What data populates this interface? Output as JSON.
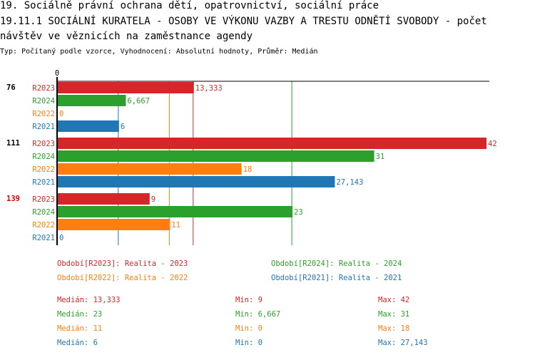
{
  "header": {
    "title": "19. Sociálně právní ochrana dětí, opatrovnictví, sociální práce",
    "subtitle_line1": "19.11.1 SOCIÁLNÍ KURATELA - OSOBY VE VÝKONU VAZBY A TRESTU ODNĚTÍ SVOBODY - počet",
    "subtitle_line2": " návštěv ve věznicích na zaměstnance agendy",
    "info": "Typ: Počítaný podle vzorce, Vyhodnocení: Absolutní hodnoty, Průměr: Medián"
  },
  "chart_data": {
    "type": "bar",
    "orientation": "horizontal",
    "x_tick_labels": [
      "0"
    ],
    "xlim": [
      0,
      42
    ],
    "categories": [
      "76",
      "111",
      "139"
    ],
    "category_colors": [
      "#000000",
      "#000000",
      "#e00000"
    ],
    "series": [
      {
        "name": "R2023",
        "color": "#d62728",
        "values": [
          13.333,
          42,
          9
        ],
        "labels": [
          "13,333",
          "42",
          "9"
        ]
      },
      {
        "name": "R2024",
        "color": "#2ca02c",
        "values": [
          6.667,
          31,
          23
        ],
        "labels": [
          "6,667",
          "31",
          "23"
        ]
      },
      {
        "name": "R2022",
        "color": "#ff7f0e",
        "values": [
          0,
          18,
          11
        ],
        "labels": [
          "0",
          "18",
          "11"
        ]
      },
      {
        "name": "R2021",
        "color": "#1f77b4",
        "values": [
          6,
          27.143,
          0
        ],
        "labels": [
          "6",
          "27,143",
          "0"
        ]
      }
    ],
    "median_lines": [
      {
        "series": "R2021",
        "value": 6,
        "color": "#1f77b4"
      },
      {
        "series": "R2022",
        "value": 11,
        "color": "#ff7f0e"
      },
      {
        "series": "R2023",
        "value": 13.333,
        "color": "#d62728"
      },
      {
        "series": "R2024",
        "value": 23,
        "color": "#2ca02c"
      }
    ],
    "legend": [
      {
        "text": "Období[R2023]: Realita - 2023",
        "color": "#d62728"
      },
      {
        "text": "Období[R2024]: Realita - 2024",
        "color": "#2ca02c"
      },
      {
        "text": "Období[R2022]: Realita - 2022",
        "color": "#ff7f0e"
      },
      {
        "text": "Období[R2021]: Realita - 2021",
        "color": "#1f77b4"
      }
    ],
    "stats": [
      {
        "color": "#d62728",
        "median": "Medián: 13,333",
        "min": "Min: 9",
        "max": "Max: 42"
      },
      {
        "color": "#2ca02c",
        "median": "Medián: 23",
        "min": "Min: 6,667",
        "max": "Max: 31"
      },
      {
        "color": "#ff7f0e",
        "median": "Medián: 11",
        "min": "Min: 0",
        "max": "Max: 18"
      },
      {
        "color": "#1f77b4",
        "median": "Medián: 6",
        "min": "Min: 0",
        "max": "Max: 27,143"
      }
    ]
  }
}
